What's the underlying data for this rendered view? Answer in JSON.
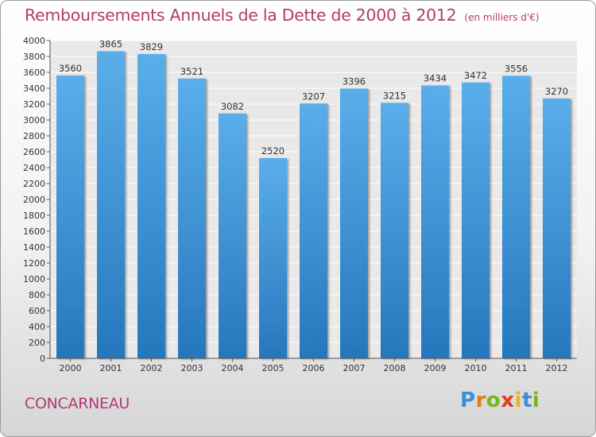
{
  "header": {
    "title": "Remboursements Annuels de la Dette de 2000 à 2012",
    "subtitle": "(en milliers d'€)"
  },
  "footer": {
    "city": "CONCARNEAU",
    "logo_text": "Proxiti"
  },
  "colors": {
    "title": "#b33a72",
    "bar_top": "#5aaeea",
    "bar_bottom": "#2677bd",
    "gridline": "#ffffff"
  },
  "chart_data": {
    "type": "bar",
    "title": "Remboursements Annuels de la Dette de 2000 à 2012",
    "subtitle": "(en milliers d'€)",
    "xlabel": "",
    "ylabel": "",
    "categories": [
      "2000",
      "2001",
      "2002",
      "2003",
      "2004",
      "2005",
      "2006",
      "2007",
      "2008",
      "2009",
      "2010",
      "2011",
      "2012"
    ],
    "values": [
      3560,
      3865,
      3829,
      3521,
      3082,
      2520,
      3207,
      3396,
      3215,
      3434,
      3472,
      3556,
      3270
    ],
    "ylim": [
      0,
      4000
    ],
    "ytick_step": 200,
    "grid": true,
    "legend": "none"
  }
}
